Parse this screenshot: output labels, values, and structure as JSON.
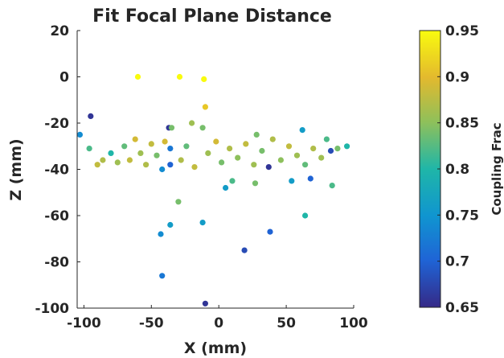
{
  "chart_data": {
    "type": "scatter",
    "title": "Fit Focal Plane Distance",
    "xlabel": "X (mm)",
    "ylabel": "Z (mm)",
    "xlim": [
      -105,
      100
    ],
    "ylim": [
      -100,
      20
    ],
    "xticks": [
      -100,
      -50,
      0,
      50,
      100
    ],
    "yticks": [
      20,
      0,
      -20,
      -40,
      -60,
      -80,
      -100
    ],
    "grid": false,
    "colorbar": {
      "label": "Coupling Frac",
      "range": [
        0.65,
        0.95
      ],
      "ticks": [
        0.95,
        0.9,
        0.85,
        0.8,
        0.75,
        0.7,
        0.65
      ],
      "tick_labels": [
        "0.95",
        "0.9",
        "0.85",
        "0.8",
        "0.75",
        "0.7",
        "0.65"
      ],
      "colormap": "parula"
    },
    "points": [
      {
        "x": -60,
        "y": 0,
        "c": 0.95
      },
      {
        "x": -29,
        "y": 0,
        "c": 0.95
      },
      {
        "x": -11,
        "y": -1,
        "c": 0.95
      },
      {
        "x": -10,
        "y": -13,
        "c": 0.91
      },
      {
        "x": -95,
        "y": -17,
        "c": 0.66
      },
      {
        "x": -103,
        "y": -25,
        "c": 0.74
      },
      {
        "x": -37,
        "y": -22,
        "c": 0.66
      },
      {
        "x": -35,
        "y": -22,
        "c": 0.84
      },
      {
        "x": -20,
        "y": -20,
        "c": 0.86
      },
      {
        "x": -12,
        "y": -22,
        "c": 0.84
      },
      {
        "x": 28,
        "y": -25,
        "c": 0.84
      },
      {
        "x": 62,
        "y": -23,
        "c": 0.76
      },
      {
        "x": 80,
        "y": -27,
        "c": 0.82
      },
      {
        "x": 95,
        "y": -30,
        "c": 0.8
      },
      {
        "x": 83,
        "y": -32,
        "c": 0.68
      },
      {
        "x": -36,
        "y": -31,
        "c": 0.72
      },
      {
        "x": -36,
        "y": -38,
        "c": 0.7
      },
      {
        "x": -42,
        "y": -40,
        "c": 0.74
      },
      {
        "x": 37,
        "y": -39,
        "c": 0.66
      },
      {
        "x": 5,
        "y": -48,
        "c": 0.76
      },
      {
        "x": 10,
        "y": -45,
        "c": 0.82
      },
      {
        "x": 27,
        "y": -46,
        "c": 0.84
      },
      {
        "x": 54,
        "y": -45,
        "c": 0.76
      },
      {
        "x": 68,
        "y": -44,
        "c": 0.7
      },
      {
        "x": 84,
        "y": -47,
        "c": 0.82
      },
      {
        "x": -30,
        "y": -54,
        "c": 0.84
      },
      {
        "x": 64,
        "y": -60,
        "c": 0.8
      },
      {
        "x": -12,
        "y": -63,
        "c": 0.76
      },
      {
        "x": -36,
        "y": -64,
        "c": 0.76
      },
      {
        "x": -43,
        "y": -68,
        "c": 0.74
      },
      {
        "x": 38,
        "y": -67,
        "c": 0.7
      },
      {
        "x": 19,
        "y": -75,
        "c": 0.68
      },
      {
        "x": -42,
        "y": -86,
        "c": 0.72
      },
      {
        "x": -10,
        "y": -98,
        "c": 0.66
      },
      {
        "x": -90,
        "y": -38,
        "c": 0.88
      },
      {
        "x": -86,
        "y": -36,
        "c": 0.87
      },
      {
        "x": -80,
        "y": -33,
        "c": 0.8
      },
      {
        "x": -75,
        "y": -37,
        "c": 0.86
      },
      {
        "x": -70,
        "y": -30,
        "c": 0.83
      },
      {
        "x": -66,
        "y": -36,
        "c": 0.88
      },
      {
        "x": -62,
        "y": -27,
        "c": 0.89
      },
      {
        "x": -58,
        "y": -33,
        "c": 0.86
      },
      {
        "x": -54,
        "y": -38,
        "c": 0.87
      },
      {
        "x": -50,
        "y": -29,
        "c": 0.88
      },
      {
        "x": -46,
        "y": -34,
        "c": 0.84
      },
      {
        "x": -40,
        "y": -28,
        "c": 0.89
      },
      {
        "x": -28,
        "y": -36,
        "c": 0.87
      },
      {
        "x": -24,
        "y": -30,
        "c": 0.83
      },
      {
        "x": -18,
        "y": -39,
        "c": 0.88
      },
      {
        "x": -8,
        "y": -33,
        "c": 0.86
      },
      {
        "x": -2,
        "y": -28,
        "c": 0.89
      },
      {
        "x": 2,
        "y": -37,
        "c": 0.84
      },
      {
        "x": 8,
        "y": -31,
        "c": 0.87
      },
      {
        "x": 14,
        "y": -35,
        "c": 0.85
      },
      {
        "x": 20,
        "y": -29,
        "c": 0.88
      },
      {
        "x": 26,
        "y": -38,
        "c": 0.86
      },
      {
        "x": 32,
        "y": -32,
        "c": 0.84
      },
      {
        "x": 40,
        "y": -27,
        "c": 0.87
      },
      {
        "x": 46,
        "y": -36,
        "c": 0.85
      },
      {
        "x": 52,
        "y": -30,
        "c": 0.88
      },
      {
        "x": 58,
        "y": -34,
        "c": 0.86
      },
      {
        "x": 64,
        "y": -38,
        "c": 0.83
      },
      {
        "x": 70,
        "y": -31,
        "c": 0.87
      },
      {
        "x": 76,
        "y": -35,
        "c": 0.86
      },
      {
        "x": 88,
        "y": -31,
        "c": 0.84
      },
      {
        "x": -96,
        "y": -31,
        "c": 0.82
      }
    ]
  }
}
